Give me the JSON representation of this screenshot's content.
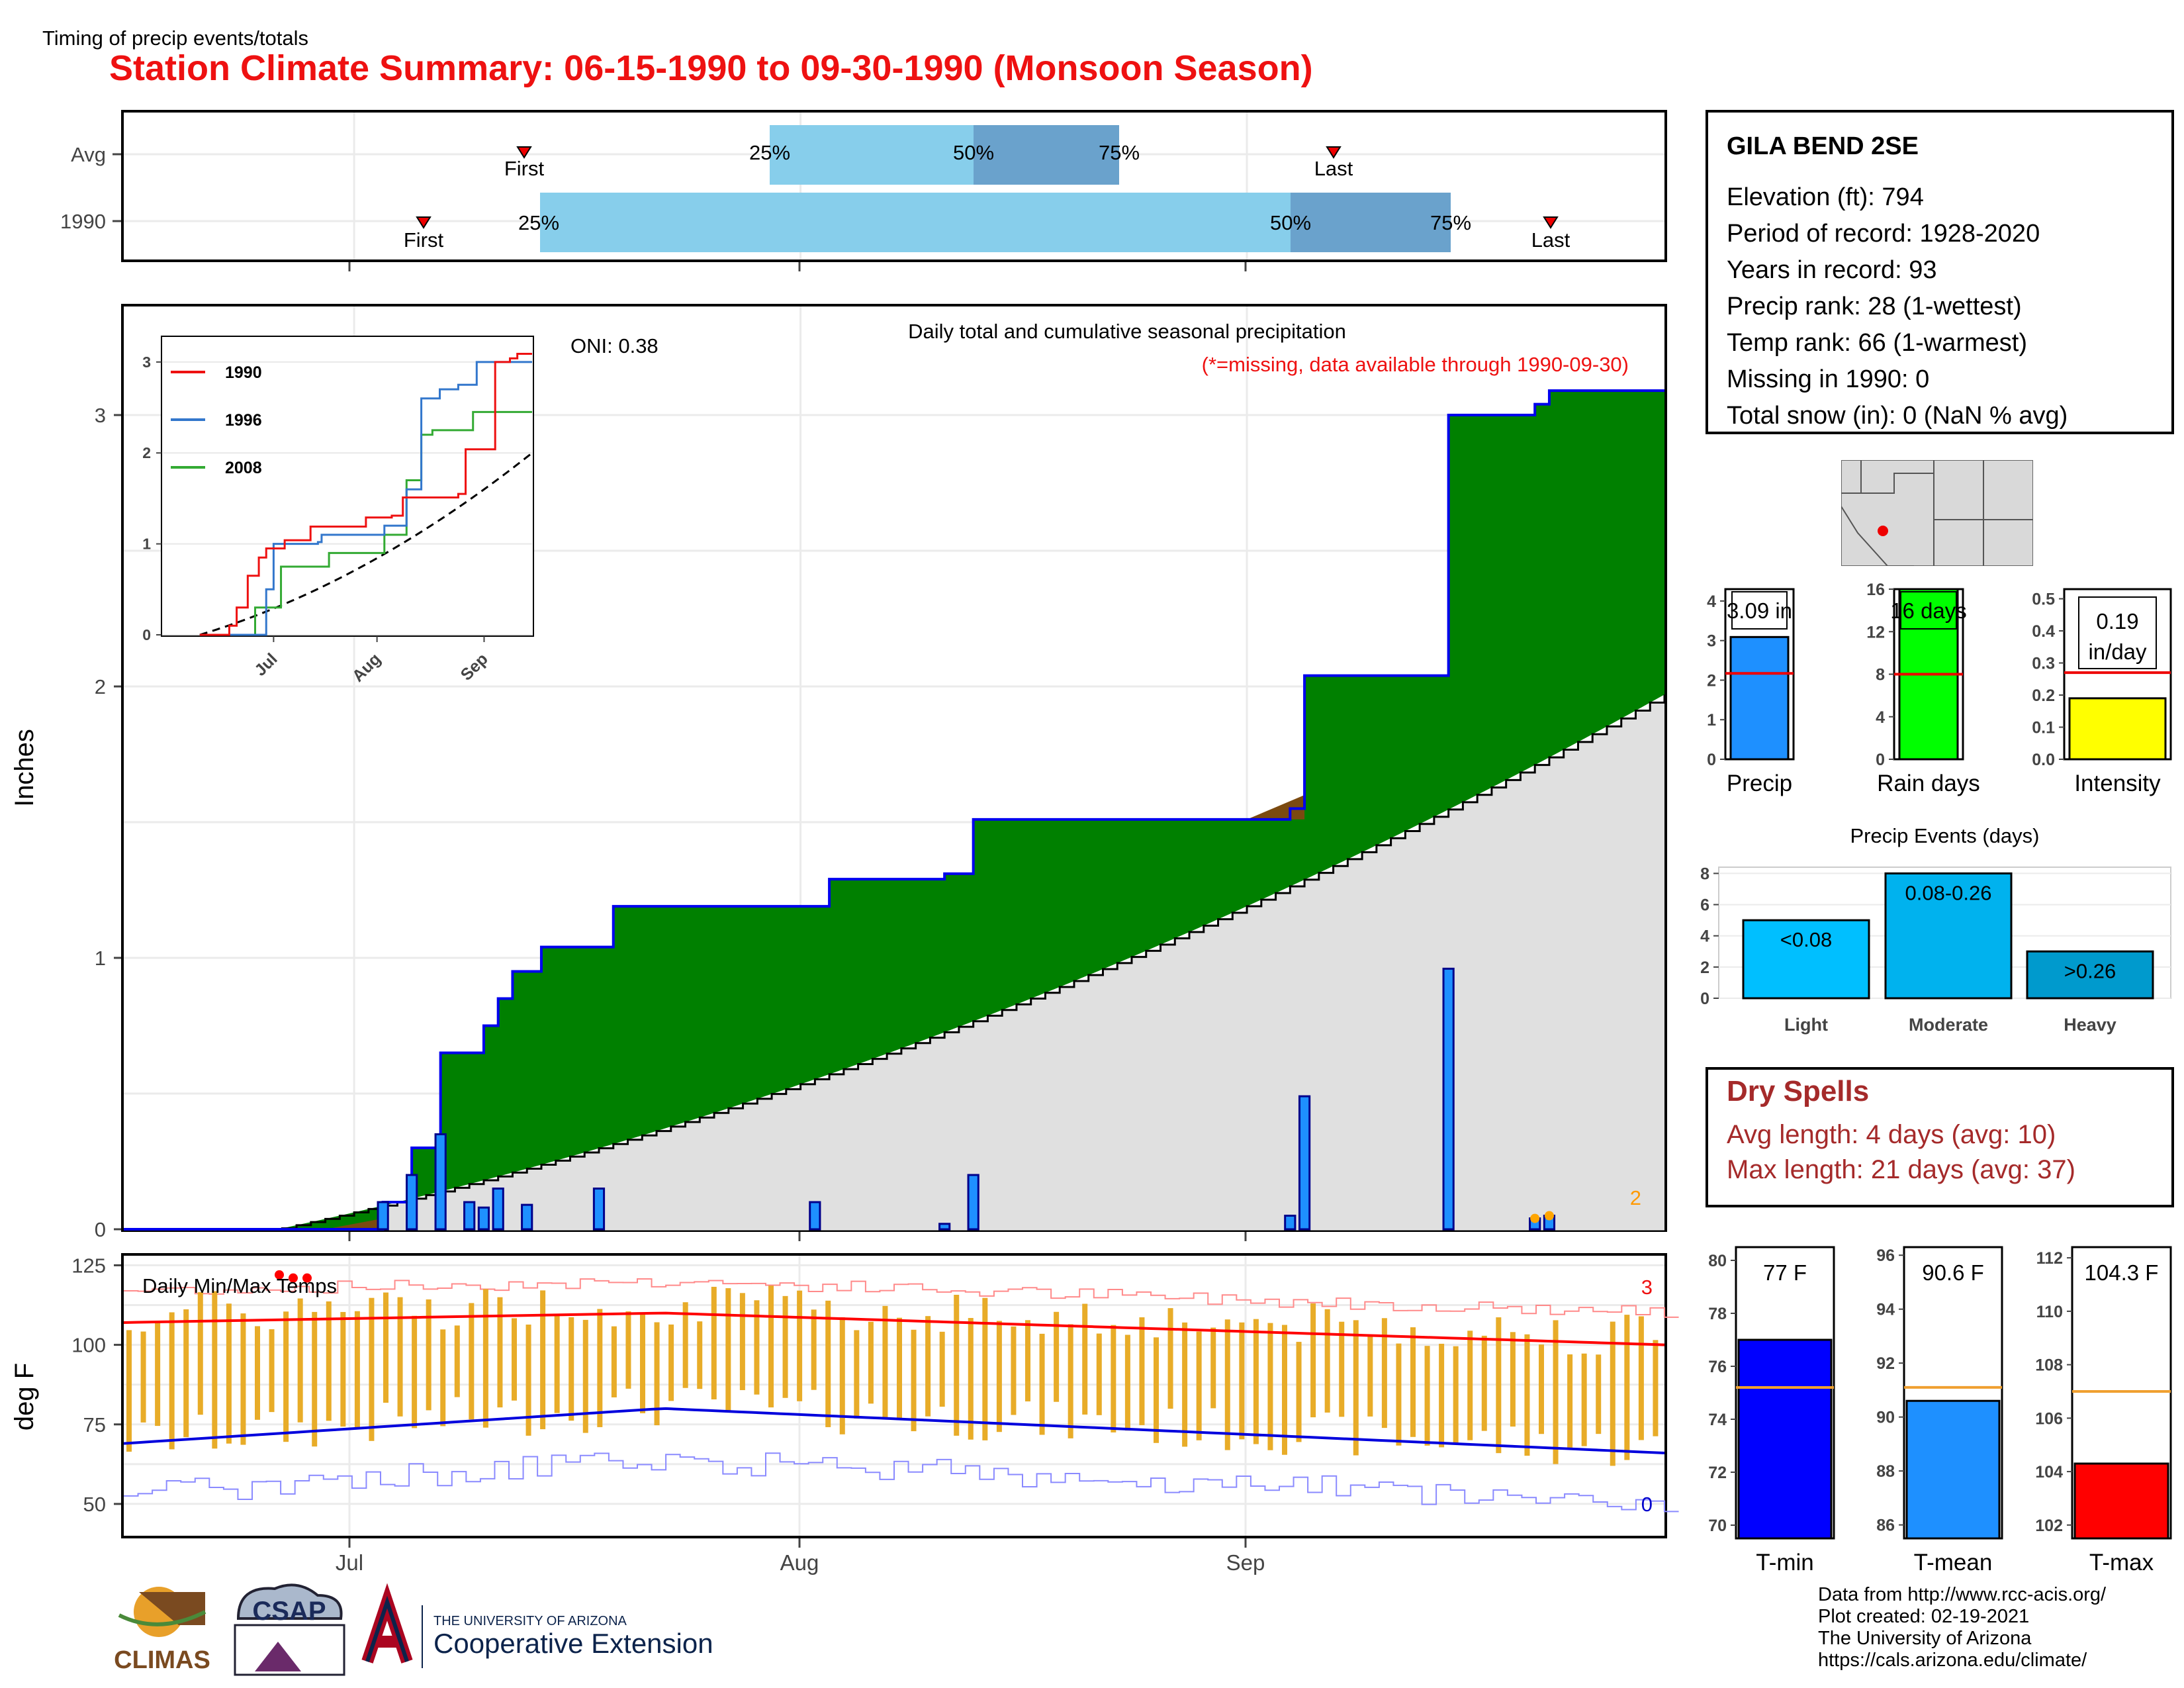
{
  "title": "Station Climate Summary: 06-15-1990 to 09-30-1990 (Monsoon Season)",
  "colors": {
    "title": "#ee1111",
    "precip_bar": "#1e90ff",
    "green": "#008000",
    "brown": "#7b4a10",
    "climo": "#e0e0e0",
    "tmax": "#ff0000",
    "tmin": "#0000dd",
    "range_bar": "#e8ac28"
  },
  "timing": {
    "label": "Timing of precip events/totals",
    "rows": [
      "Avg",
      "1990"
    ],
    "avg": {
      "first": "First",
      "last": "Last",
      "p25": "25%",
      "p50": "50%",
      "p75": "75%"
    },
    "y1990": {
      "first": "First",
      "last": "Last",
      "p25": "25%",
      "p50": "50%",
      "p75": "75%"
    }
  },
  "main": {
    "ylabel": "Inches",
    "oni": "ONI: 0.38",
    "caption": "Daily total and cumulative seasonal precipitation",
    "missing_note": "(*=missing, data available through 1990-09-30)",
    "corner_count": "2",
    "yticks": [
      "0",
      "1",
      "2",
      "3"
    ]
  },
  "inset": {
    "legend": [
      "1990",
      "1996",
      "2008"
    ],
    "yticks": [
      "0",
      "1",
      "2",
      "3"
    ],
    "xticks": [
      "Jul",
      "Aug",
      "Sep"
    ]
  },
  "temps": {
    "label": "Daily Min/Max Temps",
    "ylabel": "deg F",
    "yticks": [
      "50",
      "75",
      "100",
      "125"
    ],
    "xticks": [
      "Jul",
      "Aug",
      "Sep"
    ],
    "max_count": "3",
    "min_count": "0"
  },
  "station": {
    "name": "GILA BEND 2SE",
    "elevation": "Elevation (ft): 794",
    "period": "Period of record: 1928-2020",
    "years": "Years in record: 93",
    "precip_rank": "Precip rank: 28 (1-wettest)",
    "temp_rank": "Temp rank: 66 (1-warmest)",
    "missing": "Missing in 1990: 0",
    "snow": "Total snow (in): 0 (NaN % avg)"
  },
  "mini_precip": [
    {
      "label": "Precip",
      "value_text": "3.09 in",
      "value": 3.09,
      "avg": 2.17,
      "ymax": 4.3,
      "ticks": [
        "0",
        "1",
        "2",
        "3",
        "4"
      ],
      "color": "#1e90ff"
    },
    {
      "label": "Rain days",
      "value_text": "16 days",
      "value": 16,
      "avg": 8,
      "ymax": 16,
      "ticks": [
        "0",
        "4",
        "8",
        "12",
        "16"
      ],
      "color": "#00ff00"
    },
    {
      "label": "Intensity",
      "value_text": "0.19 in/day",
      "value": 0.19,
      "avg": 0.27,
      "ymax": 0.53,
      "ticks": [
        "0.0",
        "0.1",
        "0.2",
        "0.3",
        "0.4",
        "0.5"
      ],
      "color": "#ffff00"
    }
  ],
  "events": {
    "title": "Precip Events (days)",
    "ticks": [
      "0",
      "2",
      "4",
      "6",
      "8"
    ],
    "bars": [
      {
        "label": "Light",
        "range": "<0.08",
        "value": 5,
        "color": "#00bfff"
      },
      {
        "label": "Moderate",
        "range": "0.08-0.26",
        "value": 8,
        "color": "#00b2ee"
      },
      {
        "label": "Heavy",
        "range": ">0.26",
        "value": 3,
        "color": "#009acd"
      }
    ]
  },
  "dry_spells": {
    "title": "Dry Spells",
    "avg_length": "Avg length: 4 days (avg: 10)",
    "max_length": "Max length: 21 days (avg: 37)"
  },
  "mini_temps": [
    {
      "label": "T-min",
      "value_text": "77 F",
      "value": 77,
      "avg": 75.2,
      "ymin": 69.5,
      "ymax": 80.5,
      "ticks": [
        "70",
        "72",
        "74",
        "76",
        "78",
        "80"
      ],
      "color": "#0000ff"
    },
    {
      "label": "T-mean",
      "value_text": "90.6 F",
      "value": 90.6,
      "avg": 91.1,
      "ymin": 85.5,
      "ymax": 96.3,
      "ticks": [
        "86",
        "88",
        "90",
        "92",
        "94",
        "96"
      ],
      "color": "#1e90ff"
    },
    {
      "label": "T-max",
      "value_text": "104.3 F",
      "value": 104.3,
      "avg": 107,
      "ymin": 101.5,
      "ymax": 112.4,
      "ticks": [
        "102",
        "104",
        "106",
        "108",
        "110",
        "112"
      ],
      "color": "#ff0000"
    }
  ],
  "credits": {
    "line1": "Data from http://www.rcc-acis.org/",
    "line2": "Plot created: 02-19-2021",
    "line3": "The University of Arizona",
    "line4": "https://cals.arizona.edu/climate/"
  },
  "logos": {
    "climas": "CLIMAS",
    "csap": "CSAP",
    "ua_small": "THE UNIVERSITY OF ARIZONA",
    "ua_big": "Cooperative Extension"
  },
  "chart_data": [
    {
      "type": "area",
      "title": "Daily total and cumulative seasonal precipitation",
      "ylabel": "Inches",
      "x_range": [
        "1990-06-15",
        "1990-09-30"
      ],
      "ylim": [
        0,
        3.4
      ],
      "cumulative_1990": [
        {
          "date": "1990-07-03",
          "in": 0.1
        },
        {
          "date": "1990-07-05",
          "in": 0.3
        },
        {
          "date": "1990-07-07",
          "in": 0.65
        },
        {
          "date": "1990-07-10",
          "in": 0.75
        },
        {
          "date": "1990-07-11",
          "in": 0.85
        },
        {
          "date": "1990-07-12",
          "in": 0.95
        },
        {
          "date": "1990-07-14",
          "in": 1.04
        },
        {
          "date": "1990-07-19",
          "in": 1.19
        },
        {
          "date": "1990-08-03",
          "in": 1.29
        },
        {
          "date": "1990-08-11",
          "in": 1.31
        },
        {
          "date": "1990-08-13",
          "in": 1.51
        },
        {
          "date": "1990-09-04",
          "in": 1.55
        },
        {
          "date": "1990-09-05",
          "in": 2.04
        },
        {
          "date": "1990-09-15",
          "in": 3.0
        },
        {
          "date": "1990-09-21",
          "in": 3.04
        },
        {
          "date": "1990-09-22",
          "in": 3.09
        },
        {
          "date": "1990-09-30",
          "in": 3.09
        }
      ],
      "daily_1990": [
        {
          "date": "1990-07-03",
          "in": 0.1
        },
        {
          "date": "1990-07-05",
          "in": 0.2
        },
        {
          "date": "1990-07-07",
          "in": 0.35
        },
        {
          "date": "1990-07-09",
          "in": 0.1
        },
        {
          "date": "1990-07-10",
          "in": 0.08
        },
        {
          "date": "1990-07-11",
          "in": 0.15
        },
        {
          "date": "1990-07-13",
          "in": 0.09
        },
        {
          "date": "1990-07-18",
          "in": 0.15
        },
        {
          "date": "1990-08-02",
          "in": 0.1
        },
        {
          "date": "1990-08-11",
          "in": 0.02
        },
        {
          "date": "1990-08-13",
          "in": 0.2
        },
        {
          "date": "1990-09-04",
          "in": 0.05
        },
        {
          "date": "1990-09-05",
          "in": 0.49
        },
        {
          "date": "1990-09-15",
          "in": 0.96
        },
        {
          "date": "1990-09-21",
          "in": 0.04
        },
        {
          "date": "1990-09-22",
          "in": 0.05
        }
      ],
      "climatology_end": 1.97
    },
    {
      "type": "line",
      "title": "Daily Min/Max Temps",
      "ylabel": "deg F",
      "ylim": [
        40,
        128
      ],
      "avg_max_start": 107,
      "avg_max_peak": 110,
      "avg_max_end": 100,
      "avg_min_start": 69,
      "avg_min_peak": 80,
      "avg_min_end": 66
    }
  ]
}
